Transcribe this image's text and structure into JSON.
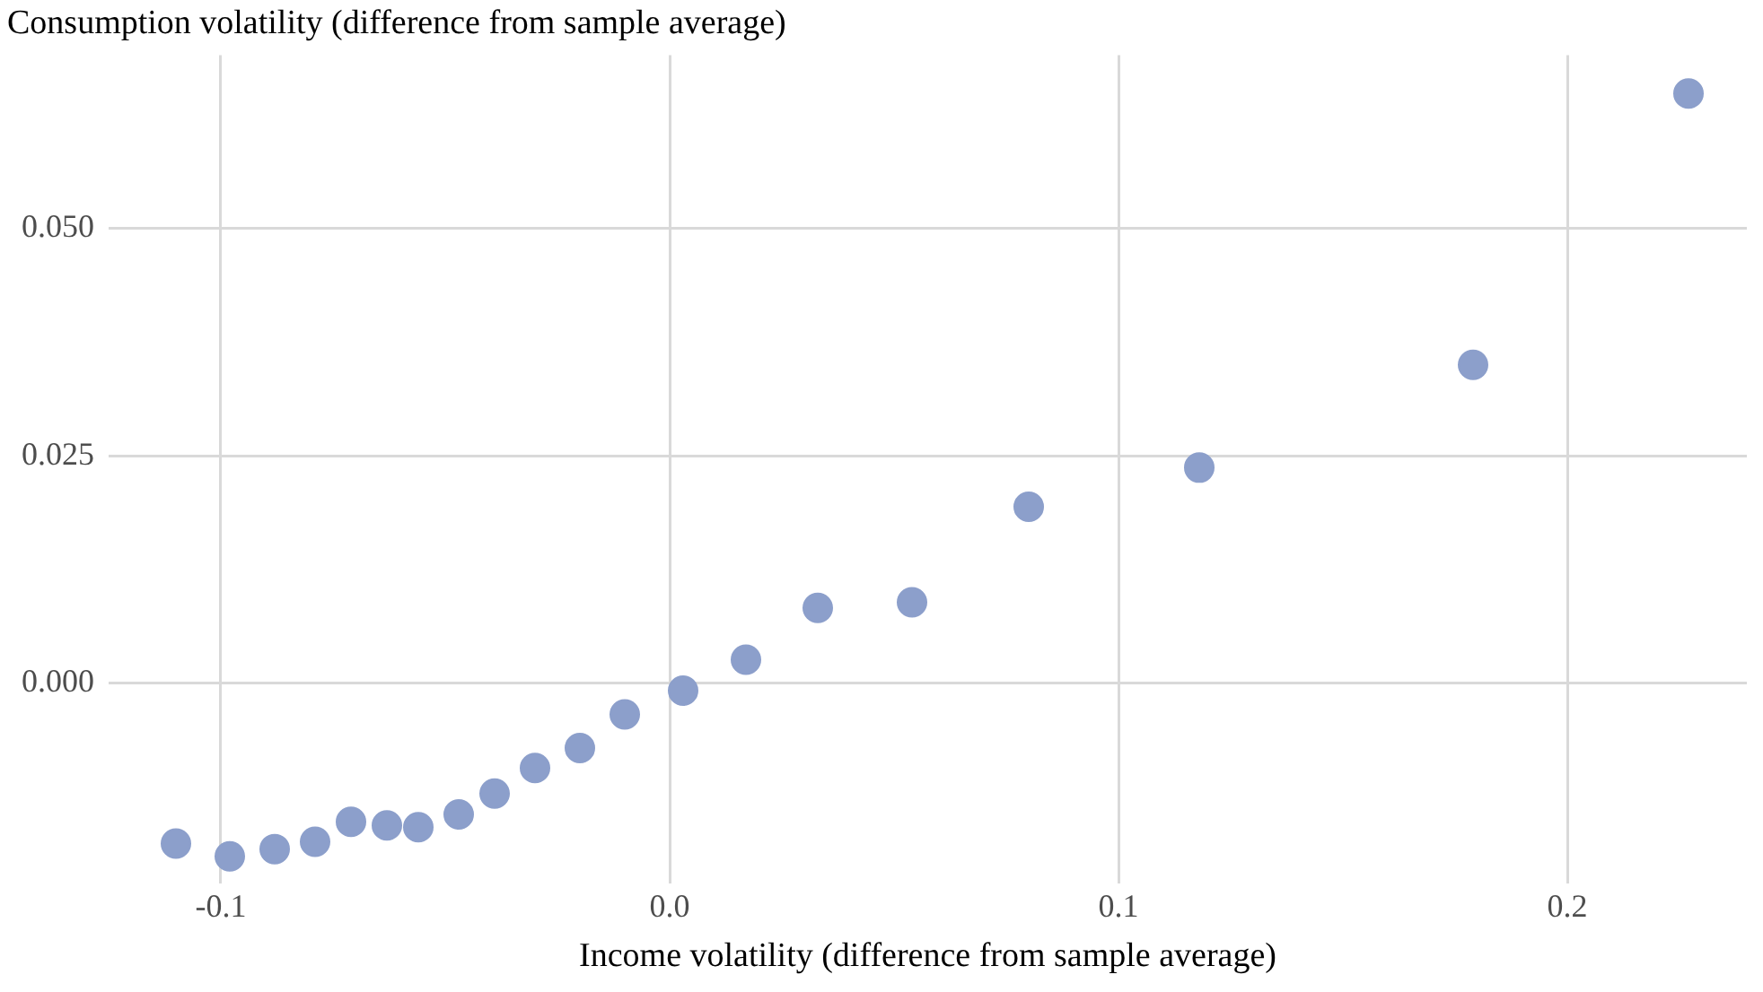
{
  "chart_data": {
    "type": "scatter",
    "xlabel": "Income volatility (difference from sample average)",
    "ylabel": "Consumption volatility (difference from sample average)",
    "x": [
      -0.11,
      -0.098,
      -0.088,
      -0.079,
      -0.071,
      -0.063,
      -0.056,
      -0.047,
      -0.039,
      -0.03,
      -0.02,
      -0.01,
      0.003,
      0.017,
      0.033,
      0.054,
      0.08,
      0.118,
      0.179,
      0.227
    ],
    "series": [
      {
        "color": "#8c9fcb",
        "values": [
          -0.0176,
          -0.019,
          -0.0182,
          -0.0174,
          -0.0152,
          -0.0156,
          -0.0158,
          -0.0144,
          -0.0121,
          -0.0093,
          -0.0071,
          -0.0034,
          -0.0008,
          0.0026,
          0.0083,
          0.0089,
          0.0194,
          0.0237,
          0.035,
          0.0648
        ]
      }
    ],
    "xlim": [
      -0.125,
      0.24
    ],
    "ylim": [
      -0.022,
      0.069
    ],
    "xticks": [
      {
        "value": -0.1,
        "label": "-0.1"
      },
      {
        "value": 0,
        "label": "0.0"
      },
      {
        "value": 0.1,
        "label": "0.1"
      },
      {
        "value": 0.2,
        "label": "0.2"
      }
    ],
    "yticks": [
      {
        "value": 0,
        "label": "0.000"
      },
      {
        "value": 0.025,
        "label": "0.025"
      },
      {
        "value": 0.05,
        "label": "0.050"
      }
    ],
    "grid": true,
    "legend": false,
    "marker": "circle"
  }
}
